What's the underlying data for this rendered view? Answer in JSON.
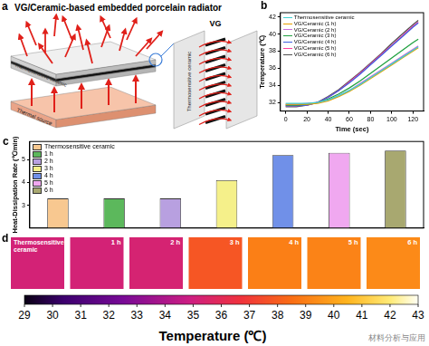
{
  "panel_labels": [
    "a",
    "b",
    "c",
    "d"
  ],
  "diagram": {
    "title": "VG/Ceramic-based embedded porcelain radiator",
    "layer_label": "Thermosensitive ceramic",
    "source_label": "Thermal source",
    "zoom_label": "VG",
    "zoom_layer_label": "Thermosensitive ceramic"
  },
  "chart_data": [
    {
      "type": "line",
      "x_label": "Time (sec)",
      "y_label": "Temperature (℃)",
      "x": [
        0,
        10,
        20,
        30,
        40,
        50,
        60,
        70,
        80,
        90,
        100,
        110,
        120,
        125
      ],
      "series": [
        {
          "name": "Thermosensitive ceramic",
          "color": "#3fd0d0",
          "values": [
            31.9,
            31.9,
            31.9,
            32.0,
            32.3,
            32.8,
            33.4,
            34.1,
            34.9,
            35.7,
            36.5,
            37.3,
            38.1,
            38.5
          ]
        },
        {
          "name": "VG/Ceramic (1 h)",
          "color": "#e8a000",
          "values": [
            31.8,
            31.8,
            31.8,
            31.9,
            32.2,
            32.7,
            33.3,
            34.0,
            34.8,
            35.6,
            36.4,
            37.2,
            38.0,
            38.4
          ]
        },
        {
          "name": "VG/Ceramic (2 h)",
          "color": "#c86cd8",
          "values": [
            31.8,
            31.8,
            31.9,
            32.0,
            32.3,
            32.8,
            33.4,
            34.2,
            35.0,
            35.8,
            36.6,
            37.4,
            38.2,
            38.6
          ]
        },
        {
          "name": "VG/Ceramic (3 h)",
          "color": "#20a040",
          "values": [
            31.7,
            31.7,
            31.8,
            32.0,
            32.4,
            33.0,
            33.7,
            34.5,
            35.4,
            36.3,
            37.2,
            38.1,
            39.0,
            39.4
          ]
        },
        {
          "name": "VG/Ceramic (4 h)",
          "color": "#4060e0",
          "values": [
            31.6,
            31.6,
            31.7,
            32.0,
            32.6,
            33.4,
            34.3,
            35.3,
            36.4,
            37.5,
            38.6,
            39.7,
            40.8,
            41.3
          ]
        },
        {
          "name": "VG/Ceramic (5 h)",
          "color": "#ff40a0",
          "values": [
            31.6,
            31.6,
            31.7,
            32.0,
            32.6,
            33.4,
            34.4,
            35.4,
            36.5,
            37.6,
            38.7,
            39.8,
            40.9,
            41.4
          ]
        },
        {
          "name": "VG/Ceramic (6 h)",
          "color": "#505050",
          "values": [
            31.5,
            31.5,
            31.7,
            32.0,
            32.7,
            33.5,
            34.5,
            35.5,
            36.6,
            37.7,
            38.9,
            40.0,
            41.1,
            41.6
          ]
        }
      ],
      "xlim": [
        -5,
        130
      ],
      "xticks": [
        0,
        20,
        40,
        60,
        80,
        100,
        120
      ],
      "ylim": [
        31,
        42.5
      ],
      "yticks": [
        32,
        34,
        36,
        38,
        40,
        42
      ],
      "grid": false,
      "legend": "upper left"
    },
    {
      "type": "bar",
      "y_label": "Heat-Dissipation Rate (℃/min)",
      "categories": [
        null,
        null,
        null,
        null,
        null,
        null,
        null
      ],
      "series": [
        {
          "name": "Thermosensitive ceramic",
          "color": "#f8c890",
          "values": [
            3.3,
            null,
            null,
            null,
            null,
            null,
            null
          ]
        },
        {
          "name": "1 h",
          "color": "#5cb85c",
          "values": [
            null,
            3.3,
            null,
            null,
            null,
            null,
            null
          ]
        },
        {
          "name": "2 h",
          "color": "#b8a0e0",
          "values": [
            null,
            null,
            3.3,
            null,
            null,
            null,
            null
          ]
        },
        {
          "name": "3 h",
          "color": "#f5f08a",
          "values": [
            null,
            null,
            null,
            4.1,
            null,
            null,
            null
          ]
        },
        {
          "name": "4 h",
          "color": "#7090e8",
          "values": [
            null,
            null,
            null,
            null,
            5.2,
            null,
            null
          ]
        },
        {
          "name": "5 h",
          "color": "#f0a8f0",
          "values": [
            null,
            null,
            null,
            null,
            null,
            5.3,
            null
          ]
        },
        {
          "name": "6 h",
          "color": "#a8a870",
          "values": [
            null,
            null,
            null,
            null,
            null,
            null,
            5.4
          ]
        }
      ],
      "ylim": [
        2,
        5.8
      ],
      "yticks": [
        3,
        4,
        5
      ],
      "grid": false,
      "legend": "upper left",
      "tick_labels": "y"
    }
  ],
  "thermal_images": {
    "images": [
      {
        "label": "Thermosensitive ceramic",
        "temperature": 35.2
      },
      {
        "label": "1 h",
        "temperature": 35.2
      },
      {
        "label": "2 h",
        "temperature": 35.3
      },
      {
        "label": "3 h",
        "temperature": 37.8
      },
      {
        "label": "4 h",
        "temperature": 39.0
      },
      {
        "label": "5 h",
        "temperature": 39.1
      },
      {
        "label": "6 h",
        "temperature": 39.3
      }
    ],
    "colorbar": {
      "range": [
        29,
        43
      ],
      "ticks": [
        29,
        30,
        31,
        32,
        33,
        34,
        35,
        36,
        37,
        38,
        39,
        40,
        41,
        42,
        43
      ],
      "label": "Temperature (℃)"
    }
  },
  "watermark": "材料分析与应用"
}
